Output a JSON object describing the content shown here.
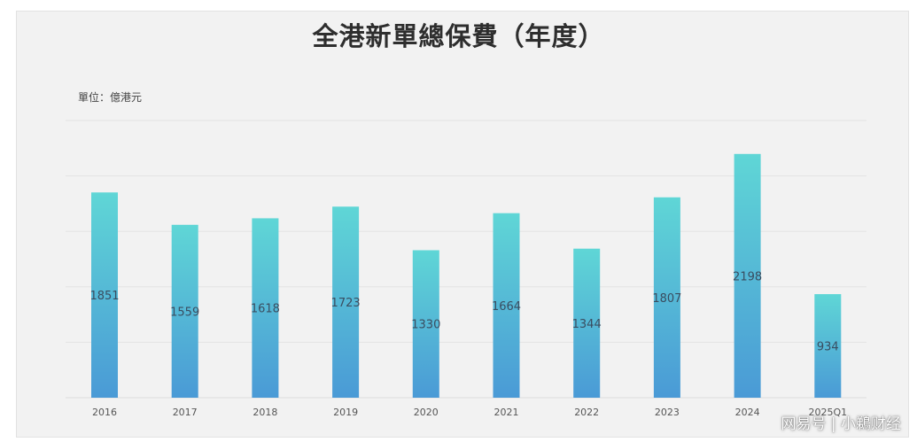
{
  "header": {
    "title": "全港新單總保費（年度）",
    "unit_label": "單位：億港元"
  },
  "watermark": "网易号 | 小鵜财经",
  "colors": {
    "bar_top": "#5fd6d6",
    "bar_bottom": "#4a9ad6",
    "grid": "#e3e3e3",
    "label": "#3a4d60",
    "axis_text": "#555555"
  },
  "chart_data": {
    "type": "bar",
    "title": "全港新單總保費（年度）",
    "ylabel": "單位：億港元",
    "xlabel": "",
    "categories": [
      "2016",
      "2017",
      "2018",
      "2019",
      "2020",
      "2021",
      "2022",
      "2023",
      "2024",
      "2025Q1"
    ],
    "values": [
      1851,
      1559,
      1618,
      1723,
      1330,
      1664,
      1344,
      1807,
      2198,
      934
    ],
    "ylim": [
      0,
      2500
    ],
    "grid": true,
    "legend": "none"
  }
}
